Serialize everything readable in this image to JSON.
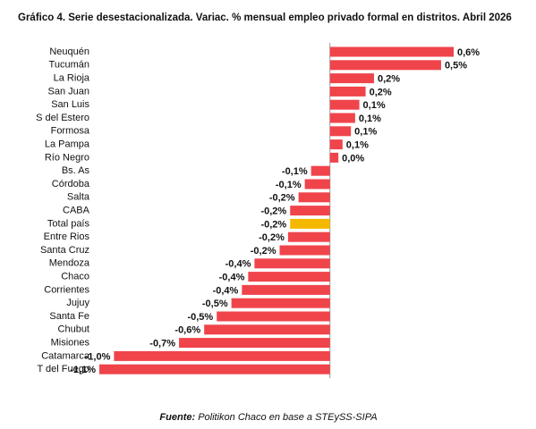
{
  "chart_data": {
    "type": "hbar",
    "title": "Gráfico 4. Serie desestacionalizada. Variac. % mensual empleo privado formal en distritos. Abril 2026",
    "categories": [
      "Neuquén",
      "Tucumán",
      "La Rioja",
      "San Juan",
      "San Luis",
      "S del Estero",
      "Formosa",
      "La Pampa",
      "Río Negro",
      "Bs. As",
      "Córdoba",
      "Salta",
      "CABA",
      "Total país",
      "Entre Rios",
      "Santa Cruz",
      "Mendoza",
      "Chaco",
      "Corrientes",
      "Jujuy",
      "Santa Fe",
      "Chubut",
      "Misiones",
      "Catamarca",
      "T del Fuego"
    ],
    "values": [
      0.59,
      0.53,
      0.21,
      0.17,
      0.14,
      0.12,
      0.1,
      0.06,
      0.04,
      -0.09,
      -0.12,
      -0.15,
      -0.19,
      -0.19,
      -0.2,
      -0.24,
      -0.36,
      -0.39,
      -0.42,
      -0.47,
      -0.54,
      -0.6,
      -0.72,
      -1.03,
      -1.1
    ],
    "value_labels": [
      "0,6%",
      "0,5%",
      "0,2%",
      "0,2%",
      "0,1%",
      "0,1%",
      "0,1%",
      "0,1%",
      "0,0%",
      "-0,1%",
      "-0,1%",
      "-0,2%",
      "-0,2%",
      "-0,2%",
      "-0,2%",
      "-0,2%",
      "-0,4%",
      "-0,4%",
      "-0,4%",
      "-0,5%",
      "-0,5%",
      "-0,6%",
      "-0,7%",
      "-1,0%",
      "-1,1%"
    ],
    "colors": [
      "#f0444b",
      "#f0444b",
      "#f0444b",
      "#f0444b",
      "#f0444b",
      "#f0444b",
      "#f0444b",
      "#f0444b",
      "#f0444b",
      "#f0444b",
      "#f0444b",
      "#f0444b",
      "#f0444b",
      "#f5b800",
      "#f0444b",
      "#f0444b",
      "#f0444b",
      "#f0444b",
      "#f0444b",
      "#f0444b",
      "#f0444b",
      "#f0444b",
      "#f0444b",
      "#f0444b",
      "#f0444b"
    ],
    "source_label": "Fuente:",
    "source_text": "Politikon Chaco en base a STEySS-SIPA"
  }
}
